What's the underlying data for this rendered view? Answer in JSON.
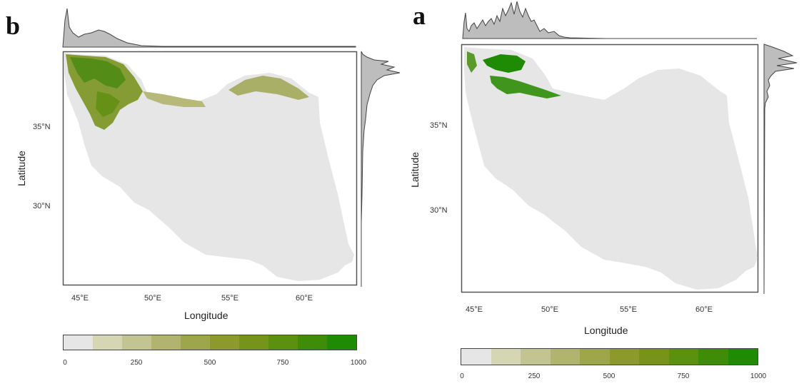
{
  "panels": {
    "left": {
      "letter": "b",
      "x_ticks": [
        "45°E",
        "50°E",
        "55°E",
        "60°E"
      ],
      "y_ticks": [
        "35°N",
        "30°N"
      ],
      "xlabel": "Longitude",
      "ylabel": "Latitude"
    },
    "right": {
      "letter": "a",
      "x_ticks": [
        "45°E",
        "50°E",
        "55°E",
        "60°E"
      ],
      "y_ticks": [
        "35°N",
        "30°N"
      ],
      "xlabel": "Longitude",
      "ylabel": "Latitude"
    }
  },
  "legend": {
    "labels": [
      "0",
      "250",
      "500",
      "750",
      "1000"
    ],
    "colors": [
      "#e6e6e6",
      "#d4d6b4",
      "#c2c592",
      "#b0b46e",
      "#9ea64b",
      "#8c9a2d",
      "#76941a",
      "#5c900f",
      "#3f8c08",
      "#1f8a03"
    ]
  },
  "colors": {
    "land_background": "#e6e6e6",
    "suitability_high": "#1f8a03",
    "suitability_mid": "#8c9a2d",
    "marginal_fill": "#bdbdbd"
  }
}
